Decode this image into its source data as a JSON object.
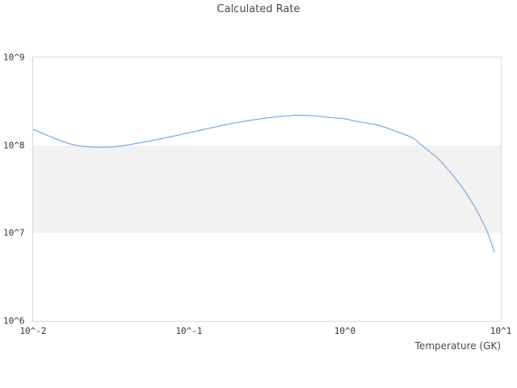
{
  "chart_data": {
    "type": "line",
    "title": "Calculated Rate",
    "xlabel": "Temperature (GK)",
    "ylabel": "",
    "x_scale": "log",
    "y_scale": "log",
    "xlim": [
      0.01,
      10
    ],
    "ylim": [
      1000000.0,
      1000000000.0
    ],
    "grid": "off",
    "legend": "none",
    "x_ticks": [
      {
        "label": "10^-2",
        "value": 0.01
      },
      {
        "label": "10^-1",
        "value": 0.1
      },
      {
        "label": "10^0",
        "value": 1
      },
      {
        "label": "10^1",
        "value": 10
      }
    ],
    "y_ticks": [
      {
        "label": "10^9",
        "value": 1000000000.0
      },
      {
        "label": "10^8",
        "value": 100000000.0
      },
      {
        "label": "10^7",
        "value": 10000000.0
      },
      {
        "label": "10^6",
        "value": 1000000.0
      }
    ],
    "background_band": {
      "y_range": [
        10000000.0,
        100000000.0
      ],
      "color": "#f2f2f2"
    },
    "series": [
      {
        "name": "calculated-rate",
        "color": "#5b9de2",
        "x": [
          0.01,
          0.0127,
          0.016,
          0.02,
          0.026,
          0.033,
          0.042,
          0.053,
          0.067,
          0.085,
          0.108,
          0.137,
          0.174,
          0.221,
          0.28,
          0.355,
          0.45,
          0.5,
          0.574,
          0.65,
          0.82,
          1.0,
          1.17,
          1.4,
          1.68,
          2.1,
          2.7,
          3.1,
          3.9,
          4.9,
          6.2,
          7.4,
          8.3,
          9.1
        ],
        "y": [
          152000000.0,
          127000000.0,
          108000000.0,
          98000000.0,
          95000000.0,
          96000000.0,
          102000000.0,
          110000000.0,
          119000000.0,
          130000000.0,
          143000000.0,
          157000000.0,
          172000000.0,
          186000000.0,
          199000000.0,
          210000000.0,
          217000000.0,
          220000000.0,
          218000000.0,
          215000000.0,
          206000000.0,
          200000000.0,
          188000000.0,
          178000000.0,
          167000000.0,
          145000000.0,
          122000000.0,
          100000000.0,
          72000000.0,
          46000000.0,
          26000000.0,
          15000000.0,
          9700000.0,
          6000000.0
        ]
      }
    ],
    "colors": {
      "plot_border": "#d9d9d9",
      "band_fill": "#f2f2f2",
      "line": "#5b9de2",
      "title_text": "#4a4a4a",
      "tick_text": "#333333"
    }
  }
}
